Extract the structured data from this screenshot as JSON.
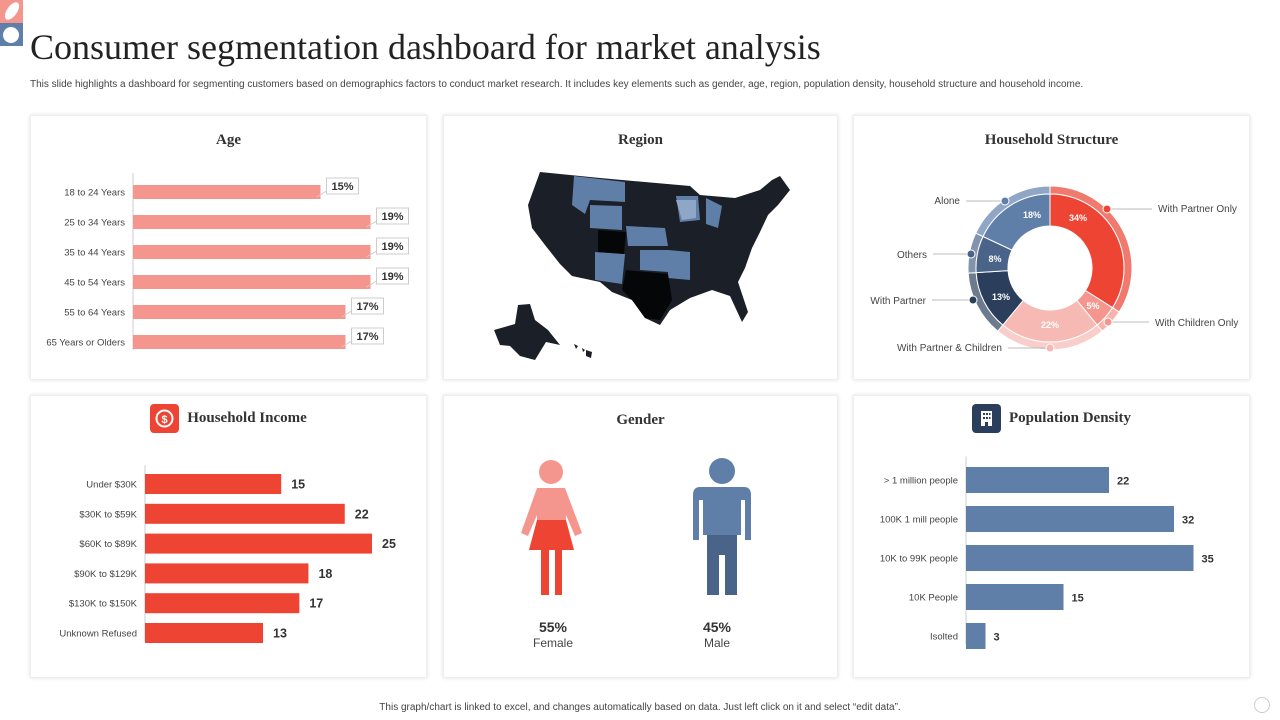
{
  "header": {
    "title": "Consumer segmentation dashboard for market analysis",
    "subtitle": "This slide highlights a dashboard for segmenting customers based on demographics factors to conduct market research. It includes key elements such as gender, age, region, population density, household structure and household income."
  },
  "footer": "This graph/chart is linked to excel, and changes automatically based on data. Just left click on it and select “edit data”.",
  "colors": {
    "red": "#ee4433",
    "pink": "#f4968e",
    "blue": "#5f7fa8",
    "navy": "#2b3f5c",
    "dark": "#1b1f27"
  },
  "chart_data": [
    {
      "type": "bar",
      "title": "Age",
      "orientation": "horizontal",
      "categories": [
        "18 to 24 Years",
        "25 to 34 Years",
        "35 to 44 Years",
        "45 to 54 Years",
        "55 to 64 Years",
        "65 Years or Olders"
      ],
      "values": [
        15,
        19,
        19,
        19,
        17,
        17
      ],
      "labels": [
        "15%",
        "19%",
        "19%",
        "19%",
        "17%",
        "17%"
      ]
    },
    {
      "type": "map",
      "title": "Region"
    },
    {
      "type": "pie",
      "title": "Household Structure",
      "donut": true,
      "categories": [
        "With Partner Only",
        "With Children Only",
        "With Partner & Children",
        "With Partner",
        "Others",
        "Alone"
      ],
      "values": [
        34,
        5,
        22,
        13,
        8,
        18
      ],
      "labels": [
        "34%",
        "5%",
        "22%",
        "13%",
        "8%",
        "18%"
      ]
    },
    {
      "type": "bar",
      "title": "Household Income",
      "orientation": "horizontal",
      "icon": "dollar-coin-icon",
      "categories": [
        "Under $30K",
        "$30K to $59K",
        "$60K to $89K",
        "$90K to $129K",
        "$130K to $150K",
        "Unknown Refused"
      ],
      "values": [
        15,
        22,
        25,
        18,
        17,
        13
      ]
    },
    {
      "type": "pictogram",
      "title": "Gender",
      "categories": [
        "Female",
        "Male"
      ],
      "values": [
        55,
        45
      ],
      "labels": [
        "55%",
        "45%"
      ]
    },
    {
      "type": "bar",
      "title": "Population  Density",
      "orientation": "horizontal",
      "icon": "building-icon",
      "categories": [
        "> 1 million people",
        "100K 1 mill people",
        "10K to 99K people",
        "10K People",
        "Isolted"
      ],
      "values": [
        22,
        32,
        35,
        15,
        3
      ]
    }
  ]
}
